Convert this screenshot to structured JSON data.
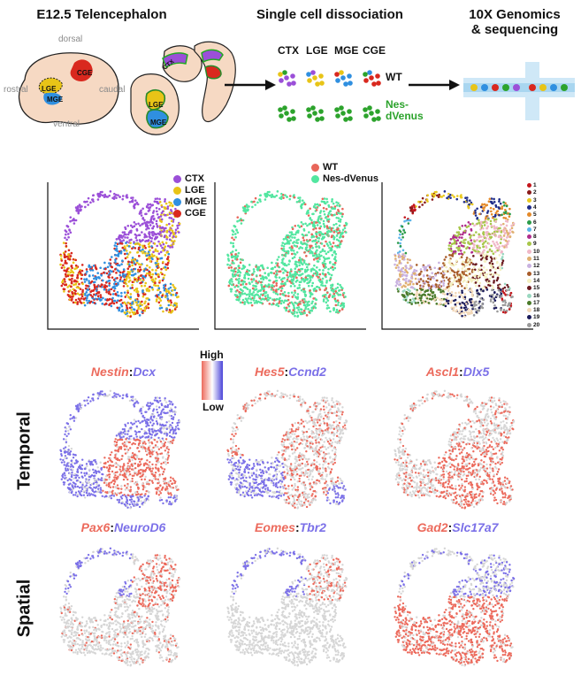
{
  "workflow": {
    "step1_title": "E12.5 Telencephalon",
    "step2_title": "Single cell dissociation",
    "step3_title_line1": "10X Genomics",
    "step3_title_line2": "& sequencing",
    "anatomy": {
      "dorsal": "dorsal",
      "ventral": "ventral",
      "rostral": "rostral",
      "caudal": "caudal"
    },
    "regions": {
      "lge": "LGE",
      "mge": "MGE",
      "cge": "CGE",
      "ctx": "CTX"
    },
    "sample_cols": [
      "CTX",
      "LGE",
      "MGE",
      "CGE"
    ],
    "wt_label": "WT",
    "nes_label_line1": "Nes-",
    "nes_label_line2": "dVenus"
  },
  "legends": {
    "regions": [
      {
        "label": "CTX",
        "color": "#9b4fd8"
      },
      {
        "label": "LGE",
        "color": "#e8c417"
      },
      {
        "label": "MGE",
        "color": "#2f8fe0"
      },
      {
        "label": "CGE",
        "color": "#d9281e"
      }
    ],
    "genotype": [
      {
        "label": "WT",
        "color": "#e8665a"
      },
      {
        "label": "Nes-dVenus",
        "color": "#52e6a0"
      }
    ],
    "clusters": [
      {
        "label": "1",
        "color": "#c4161c"
      },
      {
        "label": "2",
        "color": "#8a1a1a"
      },
      {
        "label": "3",
        "color": "#e9c91f"
      },
      {
        "label": "4",
        "color": "#1f2d8a"
      },
      {
        "label": "5",
        "color": "#e48a2a"
      },
      {
        "label": "6",
        "color": "#2c9c4a"
      },
      {
        "label": "7",
        "color": "#5ab4e8"
      },
      {
        "label": "8",
        "color": "#b02c8c"
      },
      {
        "label": "9",
        "color": "#a8c64a"
      },
      {
        "label": "10",
        "color": "#f0b8c8"
      },
      {
        "label": "11",
        "color": "#e0b070"
      },
      {
        "label": "12",
        "color": "#c9b2e0"
      },
      {
        "label": "13",
        "color": "#a85c2a"
      },
      {
        "label": "14",
        "color": "#f4f0c0"
      },
      {
        "label": "15",
        "color": "#6a1a20"
      },
      {
        "label": "16",
        "color": "#9ad8c0"
      },
      {
        "label": "17",
        "color": "#4a7a2a"
      },
      {
        "label": "18",
        "color": "#f2d8b8"
      },
      {
        "label": "19",
        "color": "#1a1a5a"
      },
      {
        "label": "20",
        "color": "#9a9a9a"
      }
    ]
  },
  "expression": {
    "scale_high": "High",
    "scale_low": "Low",
    "row_temporal": "Temporal",
    "row_spatial": "Spatial",
    "panels": [
      {
        "gene_a": "Nestin",
        "gene_b": "Dcx"
      },
      {
        "gene_a": "Hes5",
        "gene_b": "Ccnd2"
      },
      {
        "gene_a": "Ascl1",
        "gene_b": "Dlx5"
      },
      {
        "gene_a": "Pax6",
        "gene_b": "NeuroD6"
      },
      {
        "gene_a": "Eomes",
        "gene_b": "Tbr2"
      },
      {
        "gene_a": "Gad2",
        "gene_b": "Slc17a7"
      }
    ]
  },
  "colors": {
    "red": "#ec6a5c",
    "blue": "#7b70e8",
    "gray": "#d6d6d6"
  }
}
